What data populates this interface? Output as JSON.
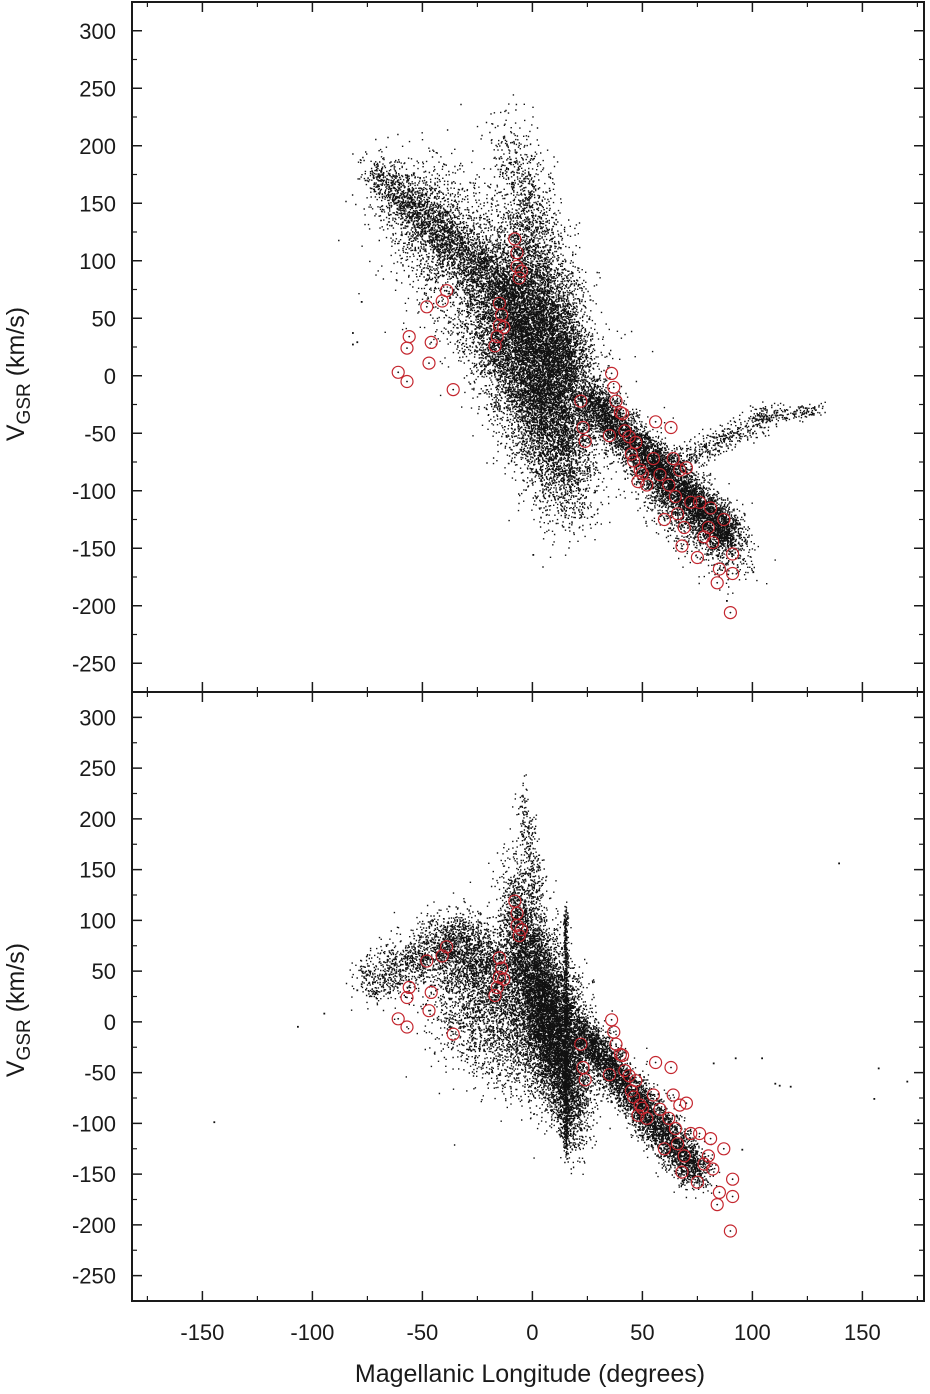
{
  "chart_data": [
    {
      "type": "scatter",
      "panel": "top",
      "xlabel": "",
      "ylabel": {
        "main": "V",
        "subscript": "GSR",
        "unit": " (km/s)"
      },
      "xlim": [
        -182,
        178
      ],
      "ylim": [
        -275,
        325
      ],
      "xticks": [
        -150,
        -100,
        -50,
        0,
        50,
        100,
        150
      ],
      "yticks": [
        300,
        250,
        200,
        150,
        100,
        50,
        0,
        -50,
        -100,
        -150,
        -200,
        -250
      ],
      "ytick_labels": [
        "300",
        "250",
        "200",
        "150",
        "100",
        "50",
        "0",
        "-50",
        "-100",
        "-150",
        "-200",
        "-250"
      ],
      "point_color": "#111111",
      "marker_color": "#c4262e",
      "point_clouds": [
        {
          "x0": -72,
          "y0": 175,
          "x1": -8,
          "y1": 70,
          "count": 2200,
          "spread_x": 4,
          "spread_y": 12
        },
        {
          "x0": -52,
          "y0": 150,
          "x1": 20,
          "y1": -30,
          "count": 4500,
          "spread_x": 12,
          "spread_y": 28
        },
        {
          "x0": -20,
          "y0": 60,
          "x1": 18,
          "y1": -100,
          "count": 4000,
          "spread_x": 8,
          "spread_y": 25
        },
        {
          "x0": -8,
          "y0": 80,
          "x1": 20,
          "y1": -10,
          "count": 6000,
          "spread_x": 5,
          "spread_y": 45
        },
        {
          "x0": -12,
          "y0": 200,
          "x1": 2,
          "y1": 130,
          "count": 500,
          "spread_x": 6,
          "spread_y": 20
        },
        {
          "x0": 25,
          "y0": -20,
          "x1": 90,
          "y1": -140,
          "count": 5000,
          "spread_x": 4,
          "spread_y": 10
        },
        {
          "x0": 50,
          "y0": -80,
          "x1": 92,
          "y1": -155,
          "count": 1500,
          "spread_x": 6,
          "spread_y": 14
        },
        {
          "x0": 60,
          "y0": -80,
          "x1": 108,
          "y1": -35,
          "count": 450,
          "spread_x": 3,
          "spread_y": 6
        },
        {
          "x0": 100,
          "y0": -35,
          "x1": 130,
          "y1": -30,
          "count": 200,
          "spread_x": 2,
          "spread_y": 4
        }
      ],
      "stragglers": [
        [
          -82,
          28
        ],
        [
          -82,
          38
        ],
        [
          -78,
          65
        ],
        [
          -48,
          118
        ],
        [
          -38,
          90
        ],
        [
          0,
          -155
        ],
        [
          88,
          -195
        ],
        [
          100,
          -170
        ],
        [
          -80,
          30
        ]
      ],
      "stars_x": [
        -61,
        -57,
        -57,
        -56,
        -48,
        -47,
        -46,
        -41,
        -39,
        -36,
        -17,
        -16,
        -15,
        -15,
        -14,
        -13,
        -8,
        -7,
        -7,
        -6,
        -5,
        22,
        23,
        24,
        35,
        36,
        37,
        38,
        40,
        41,
        42,
        44,
        45,
        46,
        47,
        48,
        49,
        50,
        52,
        55,
        56,
        58,
        60,
        62,
        63,
        64,
        65,
        66,
        67,
        68,
        69,
        70,
        72,
        75,
        76,
        78,
        80,
        81,
        82,
        84,
        85,
        87,
        90,
        91,
        91
      ],
      "stars_y": [
        3,
        24,
        -5,
        34,
        60,
        11,
        29,
        65,
        74,
        -12,
        26,
        34,
        44,
        63,
        53,
        42,
        119,
        107,
        95,
        85,
        91,
        -22,
        -45,
        -57,
        -52,
        2,
        -10,
        -22,
        -32,
        -33,
        -48,
        -53,
        -68,
        -74,
        -58,
        -92,
        -82,
        -85,
        -95,
        -72,
        -40,
        -86,
        -125,
        -95,
        -45,
        -72,
        -105,
        -120,
        -82,
        -148,
        -132,
        -80,
        -110,
        -158,
        -110,
        -140,
        -132,
        -115,
        -145,
        -180,
        -168,
        -125,
        -206,
        -172,
        -155
      ]
    },
    {
      "type": "scatter",
      "panel": "bottom",
      "xlabel": "Magellanic Longitude (degrees)",
      "ylabel": {
        "main": "V",
        "subscript": "GSR",
        "unit": " (km/s)"
      },
      "xlim": [
        -182,
        178
      ],
      "ylim": [
        -275,
        325
      ],
      "xticks": [
        -150,
        -100,
        -50,
        0,
        50,
        100,
        150
      ],
      "xtick_labels": [
        "-150",
        "-100",
        "-50",
        "0",
        "50",
        "100",
        "150"
      ],
      "yticks": [
        300,
        250,
        200,
        150,
        100,
        50,
        0,
        -50,
        -100,
        -150,
        -200,
        -250
      ],
      "ytick_labels": [
        "300",
        "250",
        "200",
        "150",
        "100",
        "50",
        "0",
        "-50",
        "-100",
        "-150",
        "-200",
        "-250"
      ],
      "point_color": "#111111",
      "marker_color": "#c4262e",
      "point_clouds": [
        {
          "x0": -75,
          "y0": 40,
          "x1": -30,
          "y1": 85,
          "count": 1200,
          "spread_x": 5,
          "spread_y": 14
        },
        {
          "x0": -38,
          "y0": 80,
          "x1": -5,
          "y1": 40,
          "count": 1500,
          "spread_x": 6,
          "spread_y": 18
        },
        {
          "x0": -35,
          "y0": 30,
          "x1": 18,
          "y1": -40,
          "count": 3500,
          "spread_x": 10,
          "spread_y": 30
        },
        {
          "x0": -10,
          "y0": 110,
          "x1": 20,
          "y1": -30,
          "count": 4500,
          "spread_x": 4,
          "spread_y": 30
        },
        {
          "x0": 0,
          "y0": 30,
          "x1": 20,
          "y1": -100,
          "count": 3000,
          "spread_x": 4,
          "spread_y": 20
        },
        {
          "x0": -5,
          "y0": 210,
          "x1": 2,
          "y1": 130,
          "count": 250,
          "spread_x": 2,
          "spread_y": 15
        },
        {
          "x0": 15,
          "y0": 110,
          "x1": 15,
          "y1": -130,
          "count": 700,
          "spread_x": 0.5,
          "spread_y": 5
        },
        {
          "x0": 22,
          "y0": -10,
          "x1": 75,
          "y1": -150,
          "count": 4200,
          "spread_x": 4,
          "spread_y": 10
        }
      ],
      "stragglers": [
        [
          -145,
          -98
        ],
        [
          -107,
          -4
        ],
        [
          -95,
          9
        ],
        [
          -80,
          32
        ],
        [
          -78,
          38
        ],
        [
          82,
          -40
        ],
        [
          92,
          -35
        ],
        [
          104,
          -35
        ],
        [
          95,
          -125
        ],
        [
          110,
          -60
        ],
        [
          112,
          -62
        ],
        [
          117,
          -63
        ],
        [
          139,
          157
        ],
        [
          155,
          -75
        ],
        [
          157,
          -45
        ],
        [
          170,
          -58
        ],
        [
          175,
          -96
        ]
      ],
      "stars_x": [
        -61,
        -57,
        -57,
        -56,
        -48,
        -47,
        -46,
        -41,
        -39,
        -36,
        -17,
        -16,
        -15,
        -15,
        -14,
        -13,
        -8,
        -7,
        -7,
        -6,
        -5,
        22,
        23,
        24,
        35,
        36,
        37,
        38,
        40,
        41,
        42,
        44,
        45,
        46,
        47,
        48,
        49,
        50,
        52,
        55,
        56,
        58,
        60,
        62,
        63,
        64,
        65,
        66,
        67,
        68,
        69,
        70,
        72,
        75,
        76,
        78,
        80,
        81,
        82,
        84,
        85,
        87,
        90,
        91,
        91
      ],
      "stars_y": [
        3,
        24,
        -5,
        34,
        60,
        11,
        29,
        65,
        74,
        -12,
        26,
        34,
        44,
        63,
        53,
        42,
        119,
        107,
        95,
        85,
        91,
        -22,
        -45,
        -57,
        -52,
        2,
        -10,
        -22,
        -32,
        -33,
        -48,
        -53,
        -68,
        -74,
        -58,
        -92,
        -82,
        -85,
        -95,
        -72,
        -40,
        -86,
        -125,
        -95,
        -45,
        -72,
        -105,
        -120,
        -82,
        -148,
        -132,
        -80,
        -110,
        -158,
        -110,
        -140,
        -132,
        -115,
        -145,
        -180,
        -168,
        -125,
        -206,
        -172,
        -155
      ]
    }
  ]
}
